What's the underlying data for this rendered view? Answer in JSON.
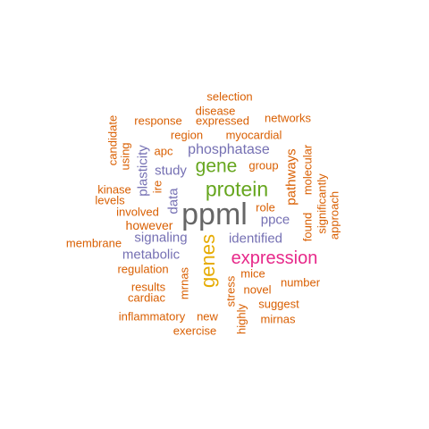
{
  "colors": {
    "orange": "#d95f02",
    "purple": "#7570b3",
    "green": "#66a61e",
    "magenta": "#e7298a",
    "yellow": "#e6ab02",
    "gray": "#666666"
  },
  "words": [
    {
      "text": "ppml",
      "color": "gray"
    },
    {
      "text": "protein",
      "color": "green"
    },
    {
      "text": "gene",
      "color": "green"
    },
    {
      "text": "genes",
      "color": "yellow"
    },
    {
      "text": "expression",
      "color": "magenta"
    },
    {
      "text": "phosphatase",
      "color": "purple"
    },
    {
      "text": "metabolic",
      "color": "purple"
    },
    {
      "text": "signaling",
      "color": "purple"
    },
    {
      "text": "identified",
      "color": "purple"
    },
    {
      "text": "ppce",
      "color": "purple"
    },
    {
      "text": "study",
      "color": "purple"
    },
    {
      "text": "data",
      "color": "purple"
    },
    {
      "text": "plasticity",
      "color": "purple"
    },
    {
      "text": "selection",
      "color": "orange"
    },
    {
      "text": "disease",
      "color": "orange"
    },
    {
      "text": "response",
      "color": "orange"
    },
    {
      "text": "expressed",
      "color": "orange"
    },
    {
      "text": "networks",
      "color": "orange"
    },
    {
      "text": "region",
      "color": "orange"
    },
    {
      "text": "myocardial",
      "color": "orange"
    },
    {
      "text": "candidate",
      "color": "orange"
    },
    {
      "text": "using",
      "color": "orange"
    },
    {
      "text": "apc",
      "color": "orange"
    },
    {
      "text": "group",
      "color": "orange"
    },
    {
      "text": "kinase",
      "color": "orange"
    },
    {
      "text": "levels",
      "color": "orange"
    },
    {
      "text": "ire",
      "color": "orange"
    },
    {
      "text": "role",
      "color": "orange"
    },
    {
      "text": "pathways",
      "color": "orange"
    },
    {
      "text": "found",
      "color": "orange"
    },
    {
      "text": "molecular",
      "color": "orange"
    },
    {
      "text": "significantly",
      "color": "orange"
    },
    {
      "text": "approach",
      "color": "orange"
    },
    {
      "text": "involved",
      "color": "orange"
    },
    {
      "text": "however",
      "color": "orange"
    },
    {
      "text": "membrane",
      "color": "orange"
    },
    {
      "text": "regulation",
      "color": "orange"
    },
    {
      "text": "mrnas",
      "color": "orange"
    },
    {
      "text": "mice",
      "color": "orange"
    },
    {
      "text": "number",
      "color": "orange"
    },
    {
      "text": "results",
      "color": "orange"
    },
    {
      "text": "novel",
      "color": "orange"
    },
    {
      "text": "cardiac",
      "color": "orange"
    },
    {
      "text": "stress",
      "color": "orange"
    },
    {
      "text": "suggest",
      "color": "orange"
    },
    {
      "text": "inflammatory",
      "color": "orange"
    },
    {
      "text": "new",
      "color": "orange"
    },
    {
      "text": "highly",
      "color": "orange"
    },
    {
      "text": "mirnas",
      "color": "orange"
    },
    {
      "text": "exercise",
      "color": "orange"
    }
  ]
}
